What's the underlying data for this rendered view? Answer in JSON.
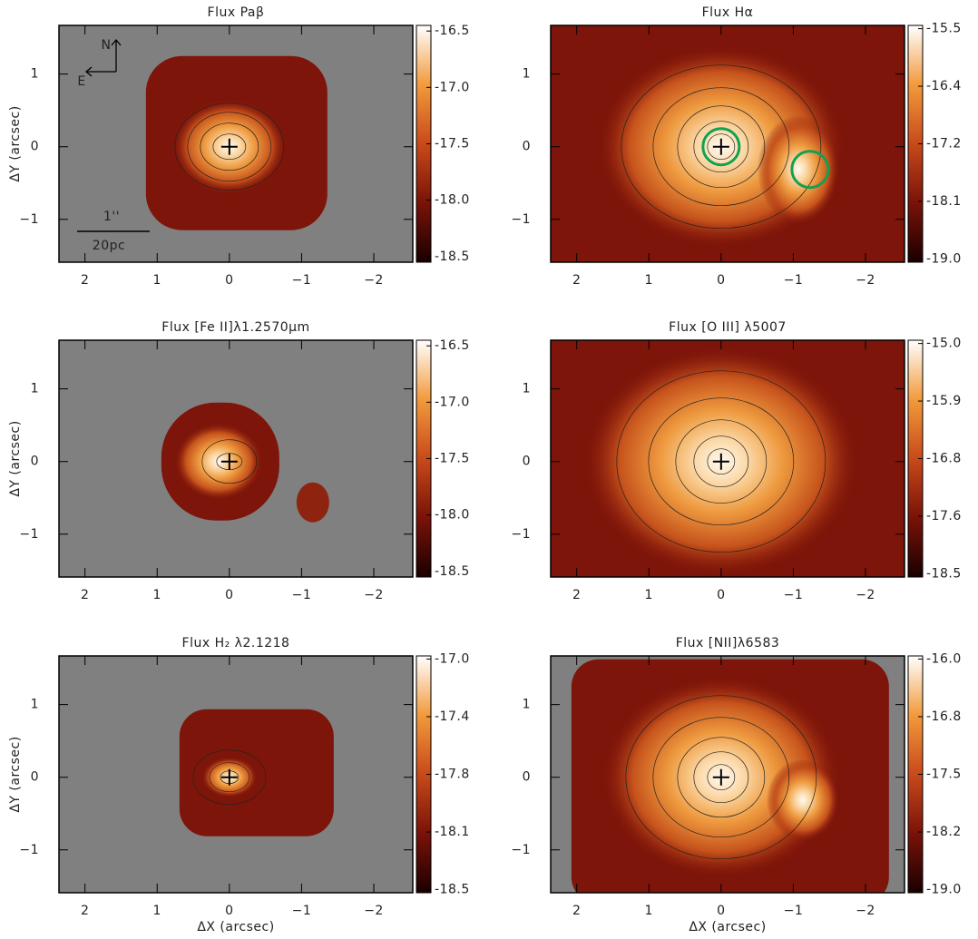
{
  "chart_data": [
    {
      "type": "map",
      "title": "Flux Paβ",
      "ylabel": "ΔY (arcsec)",
      "xlim": [
        2.36,
        -2.54
      ],
      "ylim": [
        -1.59,
        1.67
      ],
      "xticks": [
        2,
        1,
        0,
        {
          "value": -1,
          "label": "−1"
        },
        {
          "value": -2,
          "label": "−2"
        }
      ],
      "yticks": [
        {
          "value": -1,
          "label": "−1"
        },
        0,
        1
      ],
      "clim": [
        -18.55,
        -16.45
      ],
      "cticks": [
        {
          "value": -16.5,
          "label": "-16.5"
        },
        {
          "value": -17.0,
          "label": "-17.0"
        },
        {
          "value": -17.5,
          "label": "-17.5"
        },
        {
          "value": -18.0,
          "label": "-18.0"
        },
        {
          "value": -18.5,
          "label": "-18.5"
        }
      ],
      "annotations": [
        "N",
        "E",
        "1''",
        "20pc"
      ]
    },
    {
      "type": "map",
      "title": "Flux Hα",
      "xlim": [
        2.36,
        -2.54
      ],
      "ylim": [
        -1.59,
        1.67
      ],
      "xticks": [
        2,
        1,
        0,
        {
          "value": -1,
          "label": "−1"
        },
        {
          "value": -2,
          "label": "−2"
        }
      ],
      "yticks": [
        {
          "value": -1,
          "label": "−1"
        },
        0,
        1
      ],
      "clim": [
        -19.05,
        -15.45
      ],
      "cticks": [
        {
          "value": -15.5,
          "label": "-15.5"
        },
        {
          "value": -16.375,
          "label": "-16.4"
        },
        {
          "value": -17.25,
          "label": "-17.2"
        },
        {
          "value": -18.125,
          "label": "-18.1"
        },
        {
          "value": -19.0,
          "label": "-19.0"
        }
      ]
    },
    {
      "type": "map",
      "title": "Flux [Fe II]λ1.2570μm",
      "ylabel": "ΔY (arcsec)",
      "xlim": [
        2.36,
        -2.54
      ],
      "ylim": [
        -1.59,
        1.67
      ],
      "xticks": [
        2,
        1,
        0,
        {
          "value": -1,
          "label": "−1"
        },
        {
          "value": -2,
          "label": "−2"
        }
      ],
      "yticks": [
        {
          "value": -1,
          "label": "−1"
        },
        0,
        1
      ],
      "clim": [
        -18.55,
        -16.45
      ],
      "cticks": [
        {
          "value": -16.5,
          "label": "-16.5"
        },
        {
          "value": -17.0,
          "label": "-17.0"
        },
        {
          "value": -17.5,
          "label": "-17.5"
        },
        {
          "value": -18.0,
          "label": "-18.0"
        },
        {
          "value": -18.5,
          "label": "-18.5"
        }
      ]
    },
    {
      "type": "map",
      "title": "Flux [O III] λ5007",
      "xlim": [
        2.36,
        -2.54
      ],
      "ylim": [
        -1.59,
        1.67
      ],
      "xticks": [
        2,
        1,
        0,
        {
          "value": -1,
          "label": "−1"
        },
        {
          "value": -2,
          "label": "−2"
        }
      ],
      "yticks": [
        {
          "value": -1,
          "label": "−1"
        },
        0,
        1
      ],
      "clim": [
        -18.55,
        -14.95
      ],
      "cticks": [
        {
          "value": -15.0,
          "label": "-15.0"
        },
        {
          "value": -15.875,
          "label": "-15.9"
        },
        {
          "value": -16.75,
          "label": "-16.8"
        },
        {
          "value": -17.625,
          "label": "-17.6"
        },
        {
          "value": -18.5,
          "label": "-18.5"
        }
      ]
    },
    {
      "type": "map",
      "title": "Flux H₂ λ2.1218",
      "ylabel": "ΔY (arcsec)",
      "xlabel": "ΔX (arcsec)",
      "xlim": [
        2.36,
        -2.54
      ],
      "ylim": [
        -1.59,
        1.67
      ],
      "xticks": [
        2,
        1,
        0,
        {
          "value": -1,
          "label": "−1"
        },
        {
          "value": -2,
          "label": "−2"
        }
      ],
      "yticks": [
        {
          "value": -1,
          "label": "−1"
        },
        0,
        1
      ],
      "clim": [
        -18.52,
        -16.98
      ],
      "cticks": [
        {
          "value": -17.0,
          "label": "-17.0"
        },
        {
          "value": -17.375,
          "label": "-17.4"
        },
        {
          "value": -17.75,
          "label": "-17.8"
        },
        {
          "value": -18.125,
          "label": "-18.1"
        },
        {
          "value": -18.5,
          "label": "-18.5"
        }
      ]
    },
    {
      "type": "map",
      "title": "Flux [NII]λ6583",
      "xlabel": "ΔX (arcsec)",
      "xlim": [
        2.36,
        -2.54
      ],
      "ylim": [
        -1.59,
        1.67
      ],
      "xticks": [
        2,
        1,
        0,
        {
          "value": -1,
          "label": "−1"
        },
        {
          "value": -2,
          "label": "−2"
        }
      ],
      "yticks": [
        {
          "value": -1,
          "label": "−1"
        },
        0,
        1
      ],
      "clim": [
        -19.04,
        -15.96
      ],
      "cticks": [
        {
          "value": -16.0,
          "label": "-16.0"
        },
        {
          "value": -16.75,
          "label": "-16.8"
        },
        {
          "value": -17.5,
          "label": "-17.5"
        },
        {
          "value": -18.25,
          "label": "-18.2"
        },
        {
          "value": -19.0,
          "label": "-19.0"
        }
      ]
    }
  ]
}
